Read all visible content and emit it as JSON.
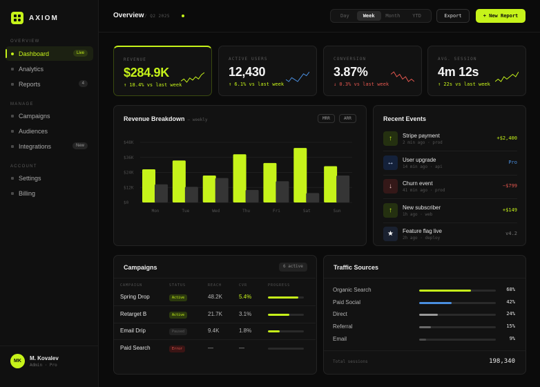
{
  "brand": {
    "name": "AXIOM"
  },
  "nav": {
    "overview_heading": "OVERVIEW",
    "manage_heading": "MANAGE",
    "account_heading": "ACCOUNT",
    "items": [
      {
        "label": "Dashboard",
        "badge": "Live"
      },
      {
        "label": "Analytics"
      },
      {
        "label": "Reports",
        "badge": "4"
      },
      {
        "label": "Campaigns"
      },
      {
        "label": "Audiences"
      },
      {
        "label": "Integrations",
        "badge": "New"
      },
      {
        "label": "Settings"
      },
      {
        "label": "Billing"
      }
    ]
  },
  "user": {
    "initials": "MK",
    "name": "M. Kovalev",
    "role": "Admin · Pro"
  },
  "header": {
    "title": "Overview",
    "subtitle": "/ Q2 2025",
    "ranges": [
      "Day",
      "Week",
      "Month",
      "YTD"
    ],
    "selected_range": "Week",
    "export_label": "Export",
    "new_report_label": "+ New Report"
  },
  "kpis": [
    {
      "label": "REVENUE",
      "value": "$284.9K",
      "delta": "↑ 18.4% vs last week",
      "spark": [
        8,
        10,
        7,
        11,
        9,
        12,
        10,
        14,
        16
      ],
      "color": "#c6f31a"
    },
    {
      "label": "ACTIVE USERS",
      "value": "12,430",
      "delta": "↑ 6.1% vs last week",
      "spark": [
        9,
        8,
        10,
        9,
        8,
        10,
        12,
        11,
        13
      ],
      "color": "#4a8fe0"
    },
    {
      "label": "CONVERSION",
      "value": "3.87%",
      "delta": "↓ 0.3% vs last week",
      "spark": [
        12,
        13,
        11,
        12,
        10,
        11,
        9,
        10,
        9
      ],
      "color": "#e4574f"
    },
    {
      "label": "AVG. SESSION",
      "value": "4m 12s",
      "delta": "↑ 22s vs last week",
      "spark": [
        9,
        10,
        9,
        11,
        10,
        11,
        12,
        11,
        13
      ],
      "color": "#c6f31a"
    }
  ],
  "revenue_breakdown": {
    "title": "Revenue Breakdown",
    "subtitle": "— weekly",
    "chips": [
      "MRR",
      "ARR"
    ]
  },
  "chart_data": {
    "type": "bar",
    "categories": [
      "Mon",
      "Tue",
      "Wed",
      "Thu",
      "Fri",
      "Sat",
      "Sun"
    ],
    "y_ticks": [
      "$0",
      "$12K",
      "$24K",
      "$36K",
      "$48K"
    ],
    "ylim": [
      0,
      48
    ],
    "series": [
      {
        "values": [
          26.5,
          33.5,
          21.5,
          38.5,
          31.5,
          43.5,
          29
        ],
        "color": "#c6f31a"
      },
      {
        "values": [
          14.5,
          12.5,
          19.5,
          10,
          17,
          7.5,
          21.5
        ],
        "color": "#353535"
      }
    ],
    "grid": true
  },
  "events": {
    "title": "Recent Events",
    "items": [
      {
        "icon": "arrow-up-icon",
        "glyph": "↑",
        "title": "Stripe payment",
        "meta": "2 min ago · prod",
        "value": "+$2,400",
        "value_color": "#c6f31a",
        "icon_bg": "#243010",
        "icon_color": "#c6f31a"
      },
      {
        "icon": "swap-icon",
        "glyph": "↔",
        "title": "User upgrade",
        "meta": "14 min ago · api",
        "value": "Pro",
        "value_color": "#4a8fe0",
        "icon_bg": "#14213a",
        "icon_color": "#d8e6ff"
      },
      {
        "icon": "arrow-down-icon",
        "glyph": "↓",
        "title": "Churn event",
        "meta": "41 min ago · prod",
        "value": "−$799",
        "value_color": "#e4574f",
        "icon_bg": "#341818",
        "icon_color": "#f1c9c6"
      },
      {
        "icon": "arrow-up-icon",
        "glyph": "↑",
        "title": "New subscriber",
        "meta": "1h ago · web",
        "value": "+$149",
        "value_color": "#c6f31a",
        "icon_bg": "#243010",
        "icon_color": "#c6f31a"
      },
      {
        "icon": "star-icon",
        "glyph": "★",
        "title": "Feature flag live",
        "meta": "2h ago · deploy",
        "value": "v4.2",
        "value_color": "#777777",
        "icon_bg": "#1a2130",
        "icon_color": "#ffffff"
      }
    ]
  },
  "campaigns": {
    "title": "Campaigns",
    "badge": "6 active",
    "columns": [
      "CAMPAIGN",
      "STATUS",
      "REACH",
      "CVR",
      "PROGRESS"
    ],
    "rows": [
      {
        "name": "Spring Drop",
        "status": "Active",
        "status_kind": "active",
        "reach": "48.2K",
        "cvr": "5.4%",
        "cvr_highlight": true,
        "progress": 0.85
      },
      {
        "name": "Retarget B",
        "status": "Active",
        "status_kind": "active",
        "reach": "21.7K",
        "cvr": "3.1%",
        "cvr_highlight": false,
        "progress": 0.6
      },
      {
        "name": "Email Drip",
        "status": "Paused",
        "status_kind": "paused",
        "reach": "9.4K",
        "cvr": "1.8%",
        "cvr_highlight": false,
        "progress": 0.33
      },
      {
        "name": "Paid Search",
        "status": "Error",
        "status_kind": "error",
        "reach": "—",
        "cvr": "—",
        "cvr_highlight": false,
        "progress": 0
      }
    ]
  },
  "traffic": {
    "title": "Traffic Sources",
    "total_label": "Total sessions",
    "total_value": "198,340",
    "sources": [
      {
        "label": "Organic Search",
        "pct": "68%",
        "fraction": 0.68,
        "color": "#c6f31a"
      },
      {
        "label": "Paid Social",
        "pct": "42%",
        "fraction": 0.42,
        "color": "#4a8fe0"
      },
      {
        "label": "Direct",
        "pct": "24%",
        "fraction": 0.24,
        "color": "#9a9a9a"
      },
      {
        "label": "Referral",
        "pct": "15%",
        "fraction": 0.15,
        "color": "#6a6a6a"
      },
      {
        "label": "Email",
        "pct": "9%",
        "fraction": 0.09,
        "color": "#4a4a4a"
      }
    ]
  }
}
